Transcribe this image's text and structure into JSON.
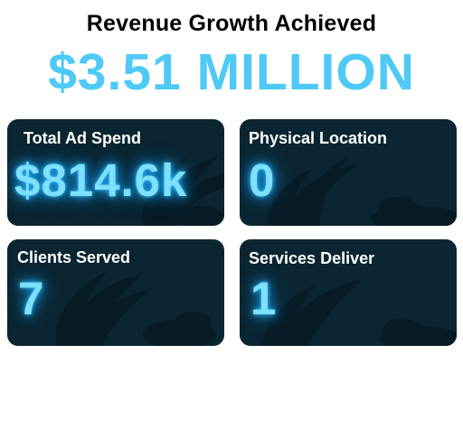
{
  "headline": "Revenue Growth Achieved",
  "revenue_amount": "$3.51 MILLION",
  "colors": {
    "accent": "#4fc9f5",
    "card_bg": "#0b2531",
    "glow": "#7fe0ff"
  },
  "cards": [
    {
      "label": "Total Ad Spend",
      "value": "$814.6k"
    },
    {
      "label": "Physical Location",
      "value": "0"
    },
    {
      "label": "Clients Served",
      "value": "7"
    },
    {
      "label": "Services Deliver",
      "value": "1"
    }
  ]
}
